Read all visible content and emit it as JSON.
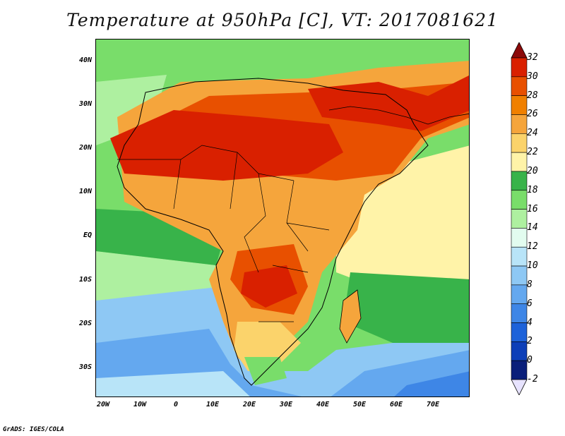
{
  "title": "Temperature at 950hPa [C], VT: 2017081621",
  "credit": "GrADS: IGES/COLA",
  "lat_labels": [
    "40N",
    "30N",
    "20N",
    "10N",
    "EQ",
    "10S",
    "20S",
    "30S"
  ],
  "lon_labels": [
    "20W",
    "10W",
    "0",
    "10E",
    "20E",
    "30E",
    "40E",
    "50E",
    "60E",
    "70E"
  ],
  "colorbar": {
    "labels": [
      "32",
      "30",
      "28",
      "26",
      "24",
      "22",
      "20",
      "18",
      "16",
      "14",
      "12",
      "10",
      "8",
      "6",
      "4",
      "2",
      "0",
      "-2"
    ],
    "colors": [
      "#8b0a0a",
      "#d92000",
      "#e85000",
      "#f08000",
      "#f5a53c",
      "#fbd36b",
      "#fff3a8",
      "#38b34a",
      "#79dd6a",
      "#aef0a0",
      "#e2fcef",
      "#b8e4f8",
      "#8ec8f4",
      "#64a8ef",
      "#3e86e6",
      "#1d62d9",
      "#0d3fb8",
      "#0a1f7a",
      "#e7e3ff"
    ]
  },
  "map": {
    "description_colors": {
      "ocean_south_atlantic": "#3e86e6",
      "ocean_tropical_atlantic": "#38b34a",
      "indian_ocean_north": "#fff3a8",
      "sahara": "#d92000"
    }
  }
}
